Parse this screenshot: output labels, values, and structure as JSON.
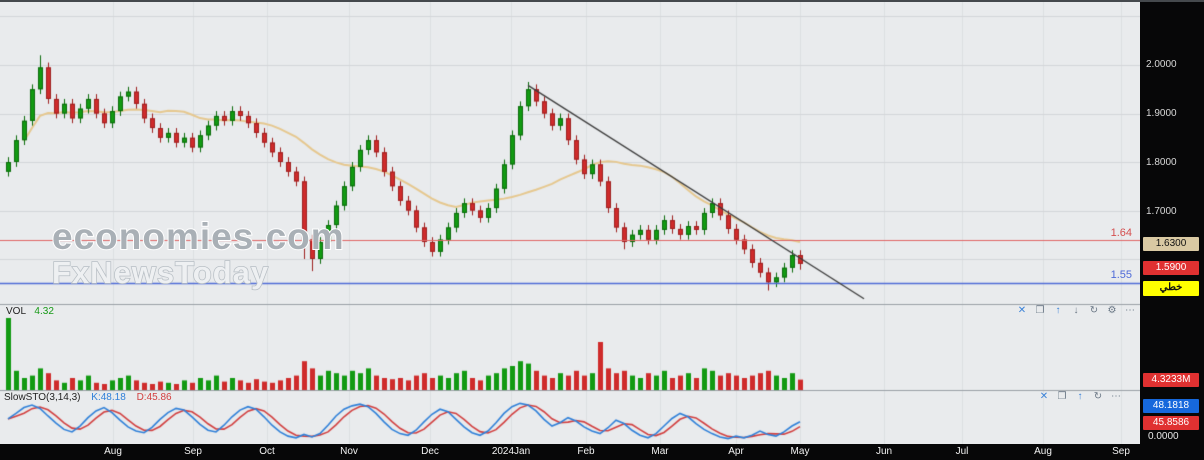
{
  "watermark": {
    "line1": "economies.com",
    "line2": "FxNewsToday"
  },
  "overlay_labels": {
    "resistance": "1.64",
    "support": "1.55"
  },
  "price_axis": {
    "ticks": [
      "2.0000",
      "1.9000",
      "1.8000",
      "1.7000"
    ],
    "ma_box": "1.6300",
    "last_box": "1.5900",
    "style_box": "خطي"
  },
  "volume_pane": {
    "title": "VOL",
    "value": "4.32",
    "axis_label": "4.3233M",
    "toolbar": [
      "close",
      "maximize",
      "arrow-up",
      "arrow-down",
      "refresh",
      "settings",
      "more"
    ]
  },
  "sto_pane": {
    "title": "SlowSTO(3,14,3)",
    "k_label": "K:48.18",
    "d_label": "D:45.86",
    "k_box": "48.1818",
    "d_box": "45.8586",
    "zero_label": "0.0000",
    "toolbar": [
      "close",
      "maximize",
      "arrow-up",
      "refresh",
      "more"
    ]
  },
  "time_axis": {
    "labels": [
      "Aug",
      "Sep",
      "Oct",
      "Nov",
      "Dec",
      "2024Jan",
      "Feb",
      "Mar",
      "Apr",
      "May",
      "Jun",
      "Jul",
      "Aug",
      "Sep"
    ]
  },
  "icons": {
    "close": "✕",
    "maximize": "❐",
    "arrow-up": "↑",
    "arrow-down": "↓",
    "refresh": "↻",
    "settings": "⚙",
    "more": "⋯"
  },
  "colors": {
    "up": "#129a12",
    "up_border": "#0b6b0b",
    "down": "#cf2b2b",
    "down_border": "#9e1f1f",
    "ma": "#e6c88f",
    "k_line": "#2f80d9",
    "d_line": "#d23f3f",
    "resistance": "#e06666",
    "support": "#4f6bd8",
    "trendline": "#3c3c3c",
    "bg": "#e9ebed",
    "grid_v": "#dcdfe2",
    "grid_h": "#d3d6d9",
    "divider": "#9aa0a6"
  },
  "chart_data": {
    "type": "candlestick",
    "title": "",
    "price_gridlines": [
      2.1,
      2.0,
      1.9,
      1.8,
      1.7,
      1.6
    ],
    "price_range_visible": [
      1.508,
      2.134
    ],
    "levels": {
      "resistance": 1.64,
      "support": 1.55
    },
    "last_price": 1.59,
    "ma_period": 20,
    "ma_last": 1.63,
    "trendline": {
      "from": {
        "i": 65,
        "price": 1.958
      },
      "to": {
        "i": 107,
        "price": 1.518
      }
    },
    "time_labels": [
      "Aug",
      "Sep",
      "Oct",
      "Nov",
      "Dec",
      "2024Jan",
      "Feb",
      "Mar",
      "Apr",
      "May",
      "Jun",
      "Jul",
      "Aug",
      "Sep"
    ],
    "volume_max_m": 30,
    "volume_last_m": 4.3233,
    "sto_range": [
      0,
      100
    ],
    "sto_k_last": 48.18,
    "sto_d_last": 45.86,
    "candles": [
      [
        1.78,
        1.81,
        1.77,
        1.8
      ],
      [
        1.8,
        1.855,
        1.79,
        1.845
      ],
      [
        1.845,
        1.895,
        1.835,
        1.885
      ],
      [
        1.885,
        1.96,
        1.875,
        1.95
      ],
      [
        1.95,
        2.02,
        1.94,
        1.995
      ],
      [
        1.995,
        2.005,
        1.92,
        1.93
      ],
      [
        1.93,
        1.94,
        1.89,
        1.9
      ],
      [
        1.9,
        1.93,
        1.89,
        1.92
      ],
      [
        1.92,
        1.93,
        1.88,
        1.89
      ],
      [
        1.89,
        1.92,
        1.88,
        1.91
      ],
      [
        1.91,
        1.94,
        1.9,
        1.93
      ],
      [
        1.93,
        1.94,
        1.89,
        1.9
      ],
      [
        1.9,
        1.91,
        1.87,
        1.88
      ],
      [
        1.88,
        1.915,
        1.87,
        1.905
      ],
      [
        1.905,
        1.945,
        1.895,
        1.935
      ],
      [
        1.935,
        1.955,
        1.925,
        1.945
      ],
      [
        1.945,
        1.955,
        1.91,
        1.92
      ],
      [
        1.92,
        1.93,
        1.88,
        1.89
      ],
      [
        1.89,
        1.9,
        1.86,
        1.87
      ],
      [
        1.87,
        1.88,
        1.84,
        1.85
      ],
      [
        1.85,
        1.87,
        1.84,
        1.86
      ],
      [
        1.86,
        1.87,
        1.83,
        1.84
      ],
      [
        1.84,
        1.86,
        1.83,
        1.85
      ],
      [
        1.85,
        1.86,
        1.82,
        1.83
      ],
      [
        1.83,
        1.865,
        1.82,
        1.855
      ],
      [
        1.855,
        1.885,
        1.845,
        1.875
      ],
      [
        1.875,
        1.905,
        1.865,
        1.895
      ],
      [
        1.895,
        1.905,
        1.875,
        1.885
      ],
      [
        1.885,
        1.915,
        1.875,
        1.905
      ],
      [
        1.905,
        1.915,
        1.885,
        1.895
      ],
      [
        1.895,
        1.905,
        1.87,
        1.88
      ],
      [
        1.88,
        1.89,
        1.85,
        1.86
      ],
      [
        1.86,
        1.87,
        1.83,
        1.84
      ],
      [
        1.84,
        1.85,
        1.81,
        1.82
      ],
      [
        1.82,
        1.83,
        1.79,
        1.8
      ],
      [
        1.8,
        1.81,
        1.77,
        1.78
      ],
      [
        1.78,
        1.79,
        1.75,
        1.76
      ],
      [
        1.76,
        1.77,
        1.6,
        1.64
      ],
      [
        1.64,
        1.65,
        1.575,
        1.6
      ],
      [
        1.6,
        1.645,
        1.59,
        1.635
      ],
      [
        1.635,
        1.68,
        1.625,
        1.67
      ],
      [
        1.67,
        1.72,
        1.66,
        1.71
      ],
      [
        1.71,
        1.76,
        1.7,
        1.75
      ],
      [
        1.75,
        1.8,
        1.74,
        1.79
      ],
      [
        1.79,
        1.835,
        1.78,
        1.825
      ],
      [
        1.825,
        1.855,
        1.815,
        1.845
      ],
      [
        1.845,
        1.855,
        1.81,
        1.82
      ],
      [
        1.82,
        1.83,
        1.77,
        1.78
      ],
      [
        1.78,
        1.79,
        1.74,
        1.75
      ],
      [
        1.75,
        1.76,
        1.71,
        1.72
      ],
      [
        1.72,
        1.73,
        1.69,
        1.7
      ],
      [
        1.7,
        1.71,
        1.655,
        1.665
      ],
      [
        1.665,
        1.675,
        1.625,
        1.635
      ],
      [
        1.635,
        1.645,
        1.605,
        1.615
      ],
      [
        1.615,
        1.65,
        1.605,
        1.64
      ],
      [
        1.64,
        1.675,
        1.63,
        1.665
      ],
      [
        1.665,
        1.705,
        1.655,
        1.695
      ],
      [
        1.695,
        1.725,
        1.685,
        1.715
      ],
      [
        1.715,
        1.725,
        1.69,
        1.7
      ],
      [
        1.7,
        1.71,
        1.675,
        1.685
      ],
      [
        1.685,
        1.715,
        1.675,
        1.705
      ],
      [
        1.705,
        1.755,
        1.695,
        1.745
      ],
      [
        1.745,
        1.805,
        1.735,
        1.795
      ],
      [
        1.795,
        1.865,
        1.785,
        1.855
      ],
      [
        1.855,
        1.925,
        1.845,
        1.915
      ],
      [
        1.915,
        1.965,
        1.905,
        1.95
      ],
      [
        1.95,
        1.96,
        1.915,
        1.925
      ],
      [
        1.925,
        1.935,
        1.89,
        1.9
      ],
      [
        1.9,
        1.91,
        1.865,
        1.875
      ],
      [
        1.875,
        1.9,
        1.865,
        1.89
      ],
      [
        1.89,
        1.9,
        1.835,
        1.845
      ],
      [
        1.845,
        1.855,
        1.795,
        1.805
      ],
      [
        1.805,
        1.815,
        1.765,
        1.775
      ],
      [
        1.775,
        1.805,
        1.765,
        1.795
      ],
      [
        1.795,
        1.805,
        1.75,
        1.76
      ],
      [
        1.76,
        1.77,
        1.695,
        1.705
      ],
      [
        1.705,
        1.715,
        1.655,
        1.665
      ],
      [
        1.665,
        1.675,
        1.62,
        1.635
      ],
      [
        1.635,
        1.66,
        1.625,
        1.65
      ],
      [
        1.65,
        1.67,
        1.64,
        1.66
      ],
      [
        1.66,
        1.67,
        1.63,
        1.64
      ],
      [
        1.64,
        1.67,
        1.63,
        1.66
      ],
      [
        1.66,
        1.69,
        1.65,
        1.68
      ],
      [
        1.68,
        1.69,
        1.652,
        1.662
      ],
      [
        1.662,
        1.672,
        1.64,
        1.65
      ],
      [
        1.65,
        1.678,
        1.64,
        1.668
      ],
      [
        1.668,
        1.678,
        1.65,
        1.66
      ],
      [
        1.66,
        1.705,
        1.65,
        1.695
      ],
      [
        1.695,
        1.725,
        1.685,
        1.715
      ],
      [
        1.715,
        1.725,
        1.68,
        1.69
      ],
      [
        1.69,
        1.7,
        1.652,
        1.662
      ],
      [
        1.662,
        1.672,
        1.63,
        1.64
      ],
      [
        1.64,
        1.65,
        1.61,
        1.62
      ],
      [
        1.62,
        1.63,
        1.582,
        1.592
      ],
      [
        1.592,
        1.602,
        1.562,
        1.572
      ],
      [
        1.572,
        1.582,
        1.535,
        1.552
      ],
      [
        1.552,
        1.572,
        1.542,
        1.562
      ],
      [
        1.562,
        1.592,
        1.552,
        1.582
      ],
      [
        1.582,
        1.618,
        1.572,
        1.608
      ],
      [
        1.608,
        1.618,
        1.578,
        1.59
      ]
    ],
    "volumes_m": [
      30,
      8,
      5,
      6,
      9,
      7,
      4,
      3,
      5,
      4,
      6,
      3,
      2.5,
      4,
      5,
      6,
      4,
      3,
      2.5,
      3.5,
      3,
      2.5,
      4,
      3,
      5,
      4,
      6,
      3.5,
      5,
      4,
      3,
      4.5,
      3.5,
      3,
      4,
      5,
      6,
      12,
      9,
      6,
      8,
      7,
      6,
      8,
      7,
      9,
      6,
      5,
      4.5,
      5,
      4,
      6,
      7,
      5,
      6,
      5,
      7,
      8,
      5,
      4,
      6,
      7,
      9,
      10,
      12,
      11,
      8,
      6,
      5,
      7,
      6,
      8,
      6,
      7,
      20,
      9,
      7,
      8,
      6,
      5,
      7,
      6,
      8,
      5,
      6,
      7,
      5,
      9,
      8,
      6,
      7,
      6,
      5,
      6,
      7,
      8,
      6,
      5,
      7,
      4.32
    ],
    "sto_k": [
      55,
      68,
      82,
      88,
      80,
      62,
      45,
      30,
      24,
      38,
      58,
      74,
      82,
      70,
      52,
      36,
      26,
      22,
      35,
      54,
      70,
      80,
      76,
      60,
      42,
      28,
      24,
      40,
      60,
      76,
      84,
      78,
      60,
      40,
      24,
      14,
      10,
      18,
      12,
      20,
      40,
      62,
      78,
      86,
      90,
      84,
      68,
      48,
      30,
      20,
      16,
      28,
      48,
      66,
      78,
      72,
      54,
      36,
      22,
      16,
      26,
      46,
      68,
      84,
      92,
      88,
      74,
      54,
      38,
      46,
      58,
      50,
      36,
      26,
      20,
      34,
      52,
      44,
      28,
      16,
      10,
      20,
      38,
      56,
      68,
      60,
      44,
      30,
      20,
      12,
      8,
      14,
      10,
      16,
      26,
      18,
      14,
      24,
      38,
      48.18
    ]
  }
}
